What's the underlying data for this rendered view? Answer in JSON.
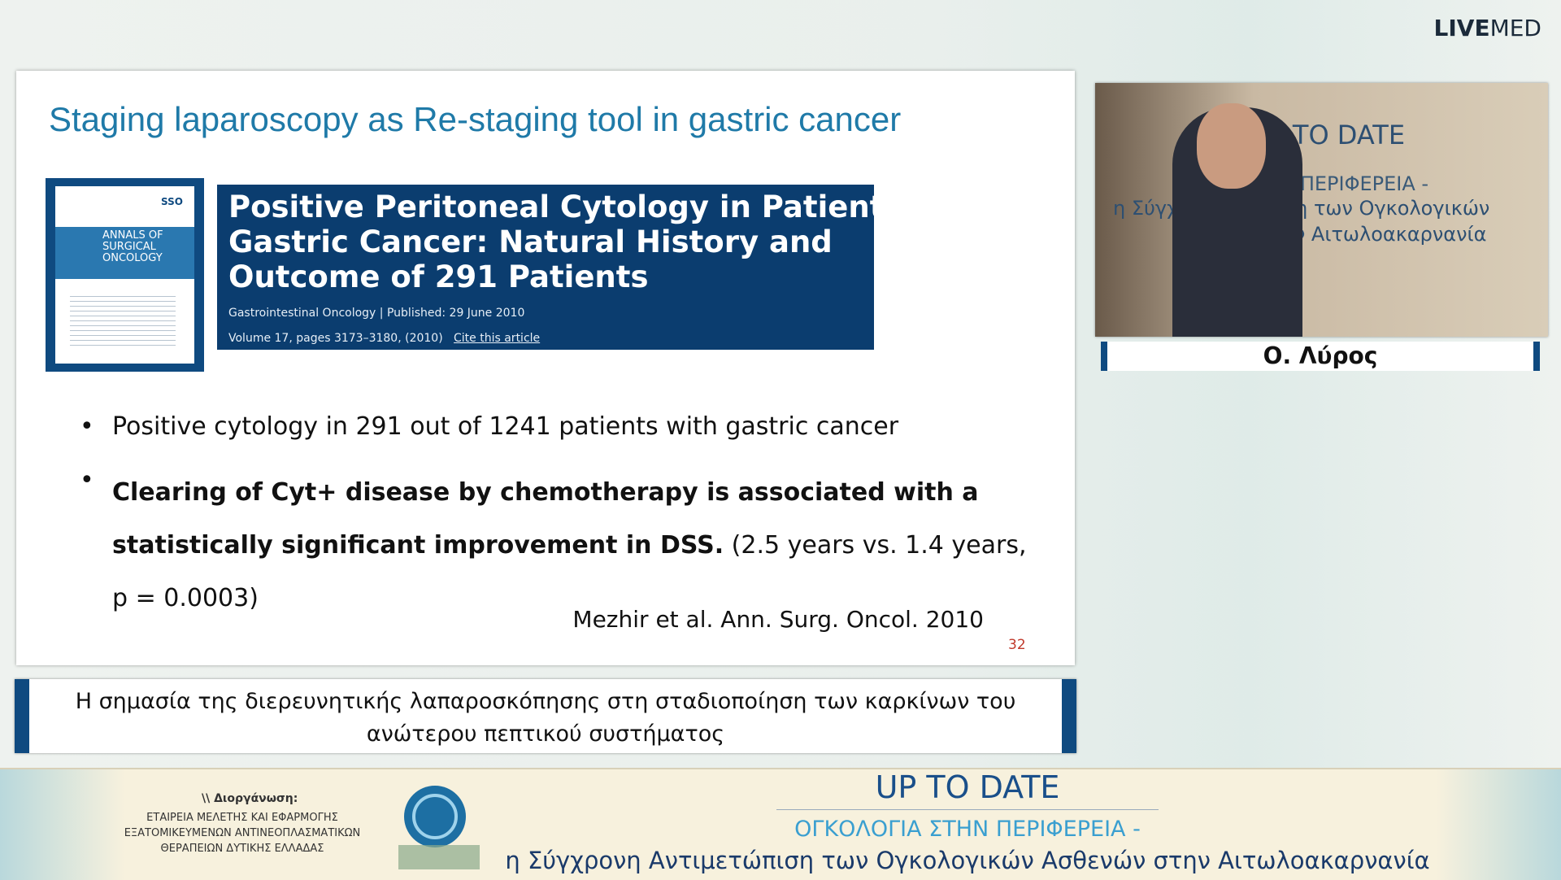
{
  "logo": {
    "bold": "LIVE",
    "light": "MED"
  },
  "slide": {
    "title": "Staging laparoscopy as Re-staging tool in gastric cancer",
    "article": {
      "title_lines": [
        "Positive Peritoneal Cytology in Patients with",
        "Gastric Cancer: Natural History and",
        "Outcome of 291 Patients"
      ],
      "section": "Gastrointestinal Oncology",
      "published": "Published: 29 June 2010",
      "volume": "Volume 17, pages 3173–3180, (2010)",
      "cite": "Cite this article"
    },
    "cover": {
      "line1": "ANNALS OF",
      "line2": "SURGICAL",
      "line3": "ONCOLOGY",
      "badge": "SSO"
    },
    "bullets": [
      {
        "text": "Positive cytology in 291 out of 1241 patients with gastric cancer"
      },
      {
        "bold": "Clearing of Cyt+ disease by chemotherapy is associated with a statistically significant improvement in DSS.",
        "normal": " (2.5 years vs. 1.4 years, p = 0.0003)"
      }
    ],
    "citation": "Mezhir et al. Ann. Surg. Oncol. 2010",
    "page_number": "32"
  },
  "caption": "Η σημασία της διερευνητικής λαπαροσκόπησης στη σταδιοποίηση των καρκίνων του ανώτερου πεπτικού συστήματος",
  "speaker": {
    "name": "Ο. Λύρος",
    "backdrop_lines": [
      "UP TO DATE",
      "ΟΓΙΑ ΣΤΗΝ ΠΕΡΙΦΕΡΕΙΑ -",
      "η Σύγχ   ντιμετώπιση των Ογκολογικών",
      "στην Αιτωλοακαρνανία"
    ]
  },
  "footer": {
    "organizer_label": "\\\\ Διοργάνωση:",
    "organizer_lines": [
      "ΕΤΑΙΡΕΙΑ ΜΕΛΕΤΗΣ ΚΑΙ ΕΦΑΡΜΟΓΗΣ",
      "ΕΞΑΤΟΜΙΚΕΥΜΕΝΩΝ ΑΝΤΙΝΕΟΠΛΑΣΜΑΤΙΚΩΝ",
      "ΘΕΡΑΠΕΙΩΝ ΔΥΤΙΚΗΣ ΕΛΛΑΔΑΣ"
    ],
    "title": "UP TO DATE",
    "subtitle": "ΟΓΚΟΛΟΓΙΑ ΣΤΗΝ ΠΕΡΙΦΕΡΕΙΑ -",
    "tagline": "η Σύγχρονη Αντιμετώπιση των Ογκολογικών Ασθενών στην Αιτωλοακαρνανία"
  }
}
